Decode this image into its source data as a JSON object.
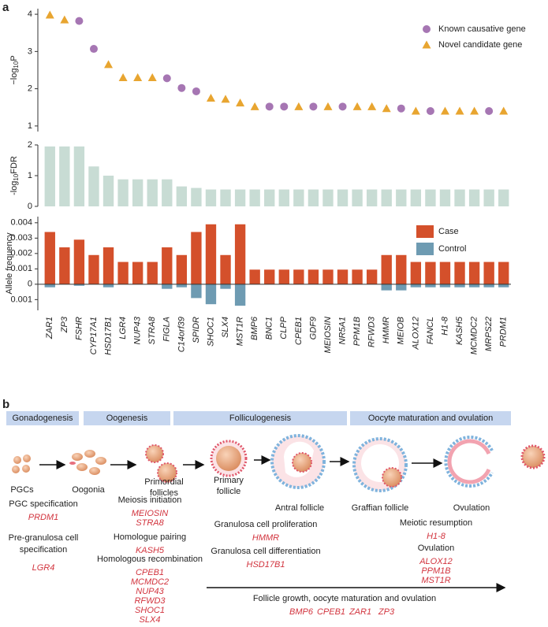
{
  "panel_label": "a",
  "chart_data": [
    {
      "type": "scatter",
      "ylabel": [
        "−log",
        "10",
        "P"
      ],
      "ylim": [
        0.85,
        4.15
      ],
      "yticks": [
        1,
        2,
        3,
        4
      ],
      "legend": "upper right",
      "series": [
        {
          "name": "Known causative gene",
          "color": "#a676b3",
          "marker": "circle",
          "values": [
            null,
            null,
            3.82,
            3.07,
            null,
            null,
            null,
            null,
            2.28,
            2.02,
            1.93,
            null,
            null,
            null,
            null,
            1.52,
            1.52,
            null,
            1.52,
            null,
            1.52,
            null,
            null,
            null,
            1.47,
            null,
            1.4,
            null,
            null,
            null,
            1.4,
            null
          ]
        },
        {
          "name": "Novel candidate gene",
          "color": "#e8a530",
          "marker": "triangle",
          "values": [
            3.98,
            3.85,
            null,
            null,
            2.65,
            2.3,
            2.3,
            2.3,
            null,
            null,
            null,
            1.75,
            1.72,
            1.62,
            1.52,
            null,
            null,
            1.52,
            null,
            1.52,
            null,
            1.52,
            1.52,
            1.47,
            null,
            1.4,
            null,
            1.4,
            1.4,
            1.4,
            null,
            1.4
          ]
        }
      ]
    },
    {
      "type": "bar",
      "ylabel": [
        "-log",
        "10",
        "FDR"
      ],
      "ylim": [
        0,
        2
      ],
      "yticks": [
        0,
        1,
        2
      ],
      "color": "#c8dcd4",
      "values": [
        1.95,
        1.95,
        1.95,
        1.3,
        1.0,
        0.88,
        0.88,
        0.88,
        0.88,
        0.65,
        0.6,
        0.55,
        0.55,
        0.55,
        0.55,
        0.55,
        0.55,
        0.55,
        0.55,
        0.55,
        0.55,
        0.55,
        0.55,
        0.55,
        0.55,
        0.55,
        0.55,
        0.55,
        0.55,
        0.55,
        0.55,
        0.55
      ]
    },
    {
      "type": "bar",
      "ylabel": "Allele frequency",
      "ylim": [
        -0.0017,
        0.0044
      ],
      "yticks": [
        0.004,
        0.003,
        0.002,
        0.001,
        0,
        {
          "value": -0.001,
          "label": "0.001"
        }
      ],
      "legend": "upper right",
      "categories": [
        "ZAR1",
        "ZP3",
        "FSHR",
        "CYP17A1",
        "HSD17B1",
        "LGR4",
        "NUP43",
        "STRA8",
        "FIGLA",
        "C14orf39",
        "SPIDR",
        "SHOC1",
        "SLX4",
        "MST1R",
        "BMP6",
        "BNC1",
        "CLPP",
        "CPEB1",
        "GDF9",
        "MEIOSIN",
        "NR5A1",
        "PPM1B",
        "RFWD3",
        "HMMR",
        "MEIOB",
        "ALOX12",
        "FANCL",
        "H1-8",
        "KASH5",
        "MCMDC2",
        "MRPS22",
        "PRDM1"
      ],
      "series": [
        {
          "name": "Case",
          "color": "#d4502b",
          "direction": "up",
          "values": [
            0.0034,
            0.0024,
            0.0029,
            0.0019,
            0.0024,
            0.00145,
            0.00145,
            0.00145,
            0.0024,
            0.0019,
            0.0034,
            0.0039,
            0.0019,
            0.0039,
            0.00095,
            0.00095,
            0.00095,
            0.00095,
            0.00095,
            0.00095,
            0.00095,
            0.00095,
            0.00095,
            0.0019,
            0.0019,
            0.00145,
            0.00145,
            0.00145,
            0.00145,
            0.00145,
            0.00145,
            0.00145
          ]
        },
        {
          "name": "Control",
          "color": "#6e9bb2",
          "direction": "down",
          "values": [
            0.0002,
            0,
            0.0001,
            0,
            0.0002,
            0,
            0,
            0,
            0.0003,
            0.0002,
            0.0009,
            0.0013,
            0.0003,
            0.0014,
            0,
            0,
            0,
            0,
            0,
            0,
            0,
            0,
            0,
            0.0004,
            0.0004,
            0.0002,
            0.0002,
            0.0002,
            0.0002,
            0.0002,
            0.0002,
            0.0002
          ]
        }
      ]
    }
  ],
  "diagram": {
    "panel_label": "b",
    "stages": [
      "Gonadogenesis",
      "Oogenesis",
      "Folliculogenesis",
      "Oocyte maturation and ovulation"
    ],
    "cells": [
      [
        "PGCs"
      ],
      [
        "Oogonia"
      ],
      [
        "Primordial",
        "follicles"
      ],
      [
        "Primary",
        "follicle"
      ],
      [
        "Antral follicle"
      ],
      [
        "Graffian follicle"
      ],
      [
        "Ovulation"
      ]
    ],
    "processes": [
      {
        "title": [
          "PGC specification"
        ],
        "genes": [
          "PRDM1"
        ]
      },
      {
        "title": [
          "Pre-granulosa cell",
          "specification"
        ],
        "genes": [
          "LGR4"
        ]
      },
      {
        "title": [
          "Meiosis initiation"
        ],
        "genes": [
          "MEIOSIN",
          "STRA8"
        ]
      },
      {
        "title": [
          "Homologue pairing"
        ],
        "genes": [
          "KASH5"
        ]
      },
      {
        "title": [
          "Homologous recombination"
        ],
        "genes": [
          "CPEB1",
          "MCMDC2",
          "NUP43",
          "RFWD3",
          "SHOC1",
          "SLX4"
        ]
      },
      {
        "title": [
          "Granulosa cell proliferation"
        ],
        "genes": [
          "HMMR"
        ]
      },
      {
        "title": [
          "Granulosa cell differentiation"
        ],
        "genes": [
          "HSD17B1"
        ]
      },
      {
        "title": [
          "Meiotic resumption"
        ],
        "genes": [
          "H1-8"
        ]
      },
      {
        "title": [
          "Ovulation"
        ],
        "genes": [
          "ALOX12",
          "PPM1B",
          "MST1R"
        ]
      },
      {
        "title": [
          "Follicle growth, oocyte maturation and ovulation"
        ],
        "genes": [
          "BMP6",
          "CPEB1",
          "ZAR1",
          "ZP3"
        ]
      }
    ]
  }
}
